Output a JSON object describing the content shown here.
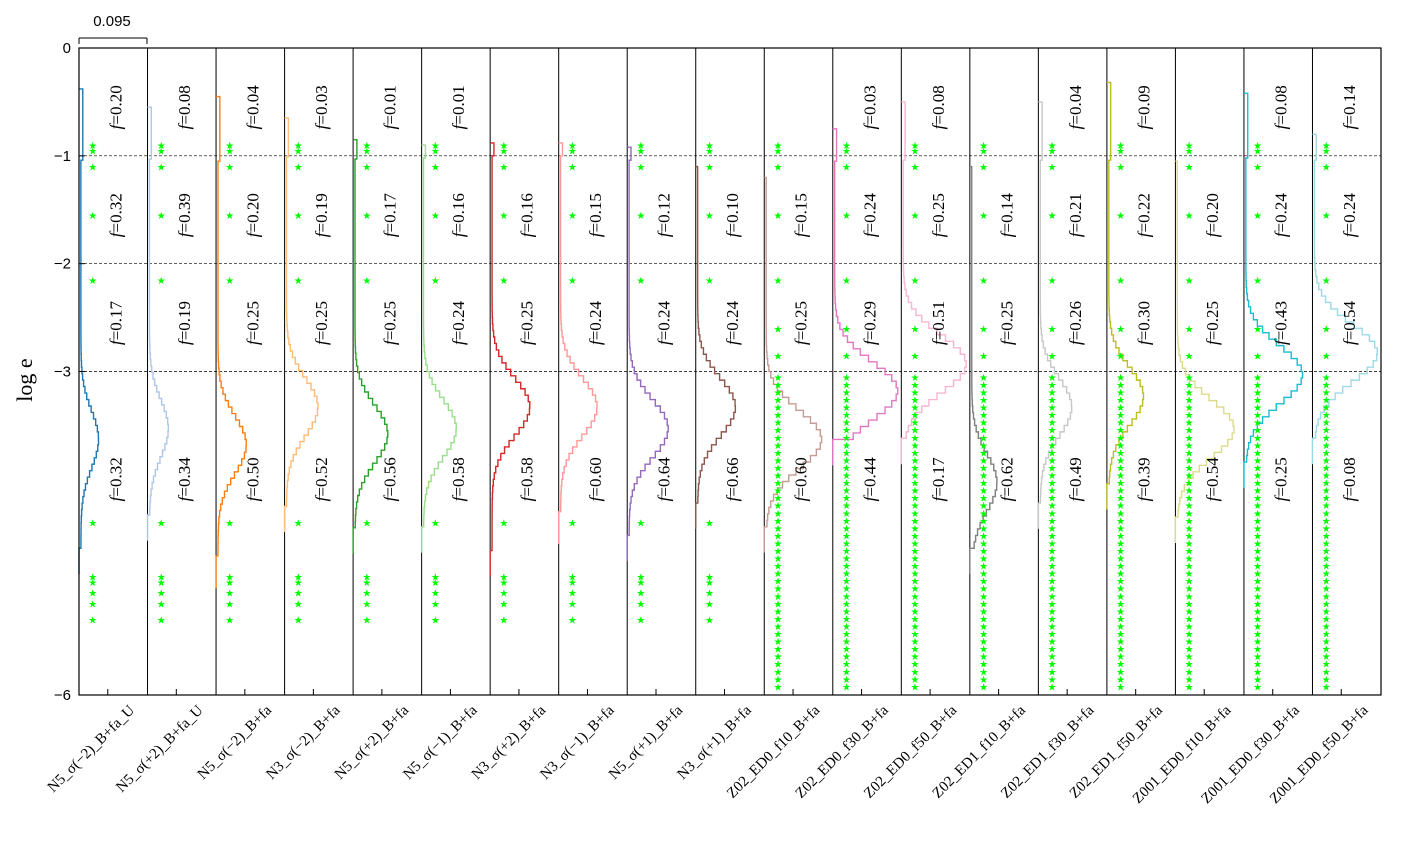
{
  "chart_data": {
    "type": "step-histogram-panels",
    "title": "",
    "xlabel": "",
    "ylabel": "log e",
    "ylim": [
      -6,
      0
    ],
    "y_ticks": [
      0,
      -1,
      -2,
      -3,
      -6
    ],
    "y_tick_labels": [
      "0",
      "−1",
      "−2",
      "−3",
      "−6"
    ],
    "dashed_grid_y": [
      -1,
      -2,
      -3
    ],
    "scale_bar_label": "0.095",
    "scale_bar_value": 0.095,
    "band_f_prefix": "f",
    "panels": [
      {
        "name": "N5_σ(−2)_B+fa_U",
        "color": "#1f77b4",
        "f": [
          "0.20",
          "0.32",
          "0.17",
          "0.32"
        ],
        "start": 0.38,
        "peak": [
          -3.6,
          0.28
        ],
        "base": -4.6,
        "markers": "sparse"
      },
      {
        "name": "N5_σ(+2)_B+fa_U",
        "color": "#aec7e8",
        "f": [
          "0.08",
          "0.39",
          "0.19",
          "0.34"
        ],
        "start": 0.55,
        "peak": [
          -3.5,
          0.3
        ],
        "base": -4.3,
        "markers": "sparse"
      },
      {
        "name": "N5_σ(−2)_B+fa",
        "color": "#ff7f0e",
        "f": [
          "0.04",
          "0.20",
          "0.25",
          "0.50"
        ],
        "start": 0.45,
        "peak": [
          -3.65,
          0.45
        ],
        "base": -4.7,
        "markers": "sparse"
      },
      {
        "name": "N3_σ(−2)_B+fa",
        "color": "#ffbb78",
        "f": [
          "0.03",
          "0.19",
          "0.25",
          "0.52"
        ],
        "start": 0.65,
        "peak": [
          -3.3,
          0.5
        ],
        "base": -4.2,
        "markers": "sparse"
      },
      {
        "name": "N5_σ(+2)_B+fa",
        "color": "#2ca02c",
        "f": [
          "0.01",
          "0.17",
          "0.25",
          "0.56"
        ],
        "start": 0.85,
        "peak": [
          -3.55,
          0.52
        ],
        "base": -4.4,
        "markers": "sparse"
      },
      {
        "name": "N5_σ(−1)_B+fa",
        "color": "#98df8a",
        "f": [
          "0.01",
          "0.16",
          "0.24",
          "0.58"
        ],
        "start": 0.9,
        "peak": [
          -3.5,
          0.52
        ],
        "base": -4.4,
        "markers": "sparse"
      },
      {
        "name": "N3_σ(+2)_B+fa",
        "color": "#d62728",
        "f": [
          "0.16",
          "0.25",
          "0.58"
        ],
        "start": 0.88,
        "peak": [
          -3.3,
          0.6
        ],
        "base": -4.6,
        "markers": "sparse"
      },
      {
        "name": "N3_σ(−1)_B+fa",
        "color": "#ff9896",
        "f": [
          "0.15",
          "0.24",
          "0.60"
        ],
        "start": 0.88,
        "peak": [
          -3.3,
          0.58
        ],
        "base": -4.3,
        "markers": "sparse"
      },
      {
        "name": "N5_σ(+1)_B+fa",
        "color": "#9467bd",
        "f": [
          "0.12",
          "0.24",
          "0.64"
        ],
        "start": 0.92,
        "peak": [
          -3.5,
          0.62
        ],
        "base": -4.5,
        "markers": "sparse"
      },
      {
        "name": "N3_σ(+1)_B+fa",
        "color": "#8c564b",
        "f": [
          "0.10",
          "0.24",
          "0.66"
        ],
        "start": 1.1,
        "peak": [
          -3.3,
          0.6
        ],
        "base": -4.2,
        "markers": "sparse"
      },
      {
        "name": "Z02_ED0_f10_B+fa",
        "color": "#c49c94",
        "f": [
          "0.15",
          "0.25",
          "0.60"
        ],
        "start": 1.2,
        "peak": [
          -3.6,
          0.88
        ],
        "base": -4.4,
        "markers": "dense"
      },
      {
        "name": "Z02_ED0_f30_B+fa",
        "color": "#e377c2",
        "f": [
          "0.03",
          "0.24",
          "0.29",
          "0.44"
        ],
        "start": 0.75,
        "peak": [
          -3.15,
          1.0
        ],
        "base": -3.6,
        "markers": "dense"
      },
      {
        "name": "Z02_ED0_f50_B+fa",
        "color": "#f7b6d2",
        "f": [
          "0.08",
          "0.25",
          "0.51",
          "0.17"
        ],
        "start": 0.5,
        "peak": [
          -2.9,
          1.0
        ],
        "base": -3.6,
        "markers": "dense"
      },
      {
        "name": "Z02_ED1_f10_B+fa",
        "color": "#7f7f7f",
        "f": [
          "0.14",
          "0.25",
          "0.62"
        ],
        "start": 1.1,
        "peak": [
          -4.0,
          0.4
        ],
        "base": -4.6,
        "markers": "dense"
      },
      {
        "name": "Z02_ED1_f30_B+fa",
        "color": "#c7c7c7",
        "f": [
          "0.04",
          "0.21",
          "0.26",
          "0.49"
        ],
        "start": 0.5,
        "peak": [
          -3.3,
          0.5
        ],
        "base": -4.2,
        "markers": "dense"
      },
      {
        "name": "Z02_ED1_f50_B+fa",
        "color": "#bcbd22",
        "f": [
          "0.09",
          "0.22",
          "0.30",
          "0.39"
        ],
        "start": 0.32,
        "peak": [
          -3.2,
          0.55
        ],
        "base": -4.0,
        "markers": "dense"
      },
      {
        "name": "Z001_ED0_f10_B+fa",
        "color": "#dbdb8d",
        "f": [
          "0.20",
          "0.25",
          "0.54"
        ],
        "start": 1.05,
        "peak": [
          -3.5,
          0.9
        ],
        "base": -4.3,
        "markers": "dense"
      },
      {
        "name": "Z001_ED0_f30_B+fa",
        "color": "#17becf",
        "f": [
          "0.08",
          "0.24",
          "0.43",
          "0.25"
        ],
        "start": 0.42,
        "peak": [
          -3.0,
          0.9
        ],
        "base": -3.8,
        "markers": "dense"
      },
      {
        "name": "Z001_ED0_f50_B+fa",
        "color": "#9edae5",
        "f": [
          "0.14",
          "0.24",
          "0.54",
          "0.08"
        ],
        "start": 0.8,
        "peak": [
          -2.8,
          1.0
        ],
        "base": -3.6,
        "markers": "dense"
      }
    ]
  }
}
